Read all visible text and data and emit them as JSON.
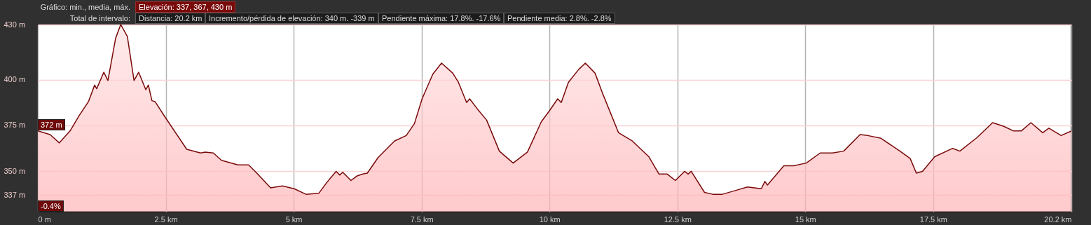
{
  "chart_data": {
    "type": "area",
    "annotations": [
      "Gráfico: min., media, máx.",
      "Elevación: 337, 367, 430 m",
      "Total de intervalo:",
      "Distancia: 20.2 km",
      "Incremento/pérdida de elevación: 340 m. -339 m",
      "Pendiente máxima: 17.8%. -17.6%",
      "Pendiente media: 2.8%. -2.8%",
      {
        "text": "372 m",
        "x": 0,
        "y": 372
      },
      "-0.4%"
    ],
    "series": [
      {
        "color": "#7a0a0a",
        "x": [
          0,
          0.24,
          0.42,
          0.63,
          0.81,
          0.99,
          1.11,
          1.15,
          1.29,
          1.37,
          1.52,
          1.62,
          1.75,
          1.88,
          1.97,
          2.11,
          2.16,
          2.23,
          2.29,
          2.5,
          2.91,
          3.18,
          3.27,
          3.43,
          3.59,
          3.91,
          4.12,
          4.28,
          4.55,
          4.78,
          5.01,
          5.24,
          5.49,
          5.65,
          5.83,
          5.9,
          5.96,
          6.12,
          6.24,
          6.35,
          6.44,
          6.65,
          6.97,
          7.2,
          7.36,
          7.51,
          7.72,
          7.89,
          8.11,
          8.22,
          8.38,
          8.44,
          8.59,
          8.77,
          9.02,
          9.29,
          9.57,
          9.84,
          10,
          10.16,
          10.23,
          10.37,
          10.57,
          10.7,
          10.89,
          11.03,
          11.35,
          11.62,
          11.94,
          12.14,
          12.3,
          12.46,
          12.64,
          12.71,
          12.77,
          13.03,
          13.19,
          13.38,
          13.63,
          13.87,
          14.14,
          14.21,
          14.26,
          14.58,
          14.77,
          15.02,
          15.29,
          15.53,
          15.75,
          16.07,
          16.22,
          16.48,
          16.85,
          17.05,
          17.17,
          17.29,
          17.53,
          17.88,
          18.02,
          18.36,
          18.66,
          18.88,
          19.07,
          19.22,
          19.41,
          19.64,
          19.76,
          20,
          20.2
        ],
        "values": [
          372,
          370,
          365.5,
          372,
          380.5,
          388,
          397,
          395,
          404,
          399.5,
          422.5,
          430,
          423.5,
          399.5,
          404,
          394.5,
          397,
          388.5,
          388,
          379,
          362,
          360,
          360.5,
          360,
          356,
          353.5,
          353.5,
          349,
          341,
          342,
          340.5,
          337.5,
          338,
          344,
          350,
          348,
          349.5,
          345,
          347.5,
          348.5,
          349,
          357.5,
          366.5,
          369.5,
          376,
          389.5,
          403,
          409,
          403.5,
          398.5,
          387.5,
          389.5,
          384,
          378,
          361,
          354.5,
          360.5,
          377,
          383,
          389.5,
          387.5,
          398.5,
          405.5,
          409,
          403.5,
          393,
          371,
          366.5,
          358,
          348.5,
          348.5,
          345,
          350,
          348.5,
          350,
          338.5,
          337.5,
          337.5,
          339.5,
          341.5,
          340.5,
          344.5,
          342.5,
          353,
          353,
          354.5,
          360,
          360,
          361,
          370,
          369.5,
          368,
          361,
          357,
          349,
          350,
          358,
          362.5,
          361,
          368.5,
          376.5,
          374.5,
          372,
          372,
          376.5,
          371,
          373.5,
          369.5,
          372
        ]
      }
    ],
    "xlim": [
      0,
      20.2
    ],
    "ylim": [
      328,
      430
    ],
    "xticks": [
      {
        "value": 0,
        "label": "0 m"
      },
      {
        "value": 2.5,
        "label": "2.5 km"
      },
      {
        "value": 5,
        "label": "5 km"
      },
      {
        "value": 7.5,
        "label": "7.5 km"
      },
      {
        "value": 10,
        "label": "10 km"
      },
      {
        "value": 12.5,
        "label": "12.5 km"
      },
      {
        "value": 15,
        "label": "15 km"
      },
      {
        "value": 17.5,
        "label": "17.5 km"
      },
      {
        "value": 20.2,
        "label": "20.2 km"
      }
    ],
    "yticks": [
      {
        "value": 337,
        "label": "337 m"
      },
      {
        "value": 350,
        "label": "350 m"
      },
      {
        "value": 375,
        "label": "375 m"
      },
      {
        "value": 400,
        "label": "400 m"
      },
      {
        "value": 430,
        "label": "430 m"
      }
    ],
    "grid": true,
    "line_style": "solid"
  }
}
